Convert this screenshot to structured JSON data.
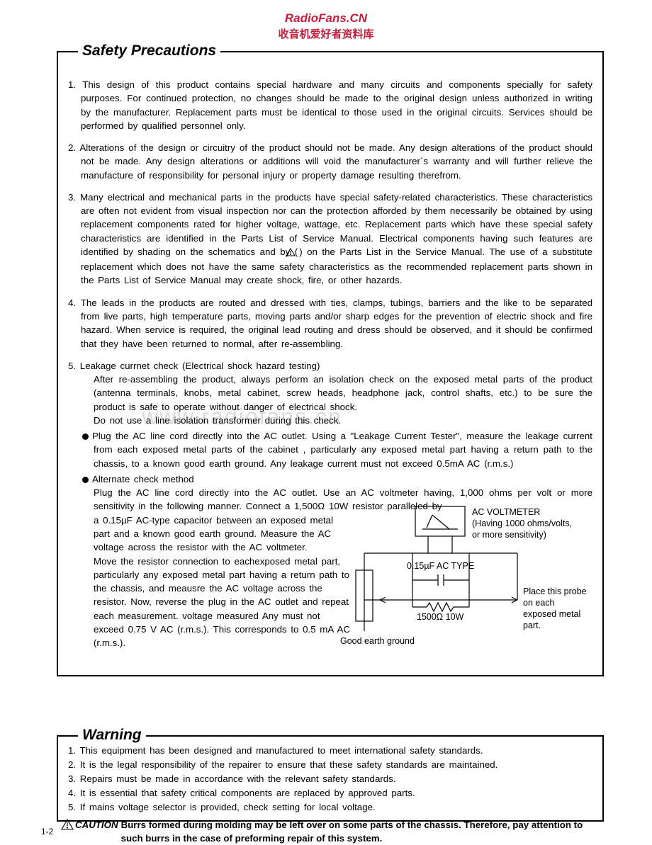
{
  "colors": {
    "watermark_red": "#c41e3a",
    "text": "#000000",
    "background": "#ffffff",
    "wm_gray": "#dcdcdc"
  },
  "typography": {
    "body_fontsize_pt": 10,
    "title_fontsize_pt": 16,
    "font_family": "Arial, Helvetica, sans-serif"
  },
  "watermark": {
    "line1": "RadioFans.CN",
    "line2": "收音机爱好者资料库",
    "center": "www.radiofans.cn"
  },
  "safety": {
    "title": "Safety Precautions",
    "items": [
      "This design of this product contains special hardware and many circuits and components specially for safety purposes.  For continued protection, no changes should be made to the original design unless authorized in writing by the manufacturer.  Replacement parts must be identical to those used in the original circuits.  Services should be performed by qualified personnel only.",
      "Alterations of the design or circuitry of the product should not be made.  Any design alterations of the product should not be made.  Any design alterations or additions will  void the manufacturer`s warranty and will further relieve the manufacture of responsibility for personal injury or property damage resulting therefrom.",
      "Many electrical and mechanical parts in the products have special safety-related characteristics. These characteristics are often not evident from visual inspection nor can the protection afforded by them necessarily be obtained by using replacement components rated for higher voltage, wattage, etc.  Replacement parts which have these special safety characteristics are identified in the Parts List of Service Manual.  Electrical components having such features are identified by shading on the schematics and by (   ) on the Parts List in the Service Manual.  The use of a substitute replacement which does not have the same safety characteristics as the recommended replacement parts shown in the Parts List of Service Manual may create shock, fire, or other hazards.",
      "The leads in the products are routed and dressed with ties, clamps, tubings, barriers and the like to be separated from live parts, high temperature parts, moving parts and/or sharp edges for the prevention of electric shock and fire hazard.  When service is required, the original lead routing and dress should be observed, and it should be confirmed that they have been returned to normal, after re-assembling."
    ],
    "item5_lead": "Leakage currnet check (Electrical shock hazard testing)",
    "item5_body": "After re-assembling the product, always perform an isolation check on the exposed metal parts of the product (antenna terminals, knobs, metal cabinet, screw heads, headphone jack, control shafts, etc.) to be sure the product is safe to operate without danger of electrical shock.\nDo not use a line isolation transformer during this check.",
    "bullet1": "Plug the AC line cord directly into the AC outlet.  Using a \"Leakage Current Tester\", measure the leakage  current from each exposed metal parts of the cabinet , particularly any exposed metal part having a return path to the chassis, to a known good earth ground. Any leakage current must not exceed 0.5mA AC (r.m.s.)",
    "bullet2_head": "Alternate check method",
    "bullet2_line": "Plug  the AC line cord directly into the AC outlet.  Use an AC voltmeter having, 1,000 ohms per volt or more sensitivity in the following manner. Connect a 1,500Ω 10W resistor paralleled by",
    "bullet2_rest": "a 0.15µF AC-type  capacitor  between an  exposed  metal part and a known good earth ground. Measure the  AC  voltage across the resistor  with the AC voltmeter.\nMove the  resistor  connection  to eachexposed metal part,  particularly  any  exposed  metal part having  a return  path  to the  chassis, and meausre the  AC  voltage  across  the  resistor. Now, reverse the plug in the AC outlet and repeat each measurement. voltage measured Any must  not exceed 0.75 V  AC  (r.m.s.). This  corresponds  to  0.5 mA  AC  (r.m.s.)."
  },
  "diagram": {
    "voltmeter_label": "AC VOLTMETER\n(Having 1000 ohms/volts,\nor more sensitivity)",
    "cap_label": "0.15µF  AC TYPE",
    "res_label": "1500Ω  10W",
    "probe_label": "Place this probe on each exposed metal part.",
    "ground_label": "Good earth ground",
    "line_color": "#000000",
    "line_width": 1.2
  },
  "warning": {
    "title": "Warning",
    "items": [
      "This equipment has been designed and manufactured to meet international safety standards.",
      "It is the legal responsibility of the repairer to ensure that these safety standards are maintained.",
      "Repairs must be made in accordance with the relevant safety standards.",
      "It is essential that safety critical components are replaced by approved parts.",
      "If mains voltage selector is provided, check setting for local voltage."
    ]
  },
  "caution": {
    "label": "CAUTION",
    "text": "Burrs formed during molding may be left over on some parts of the chassis. Therefore, pay attention to such burrs in the case of preforming repair of this system."
  },
  "page_number": "1-2"
}
